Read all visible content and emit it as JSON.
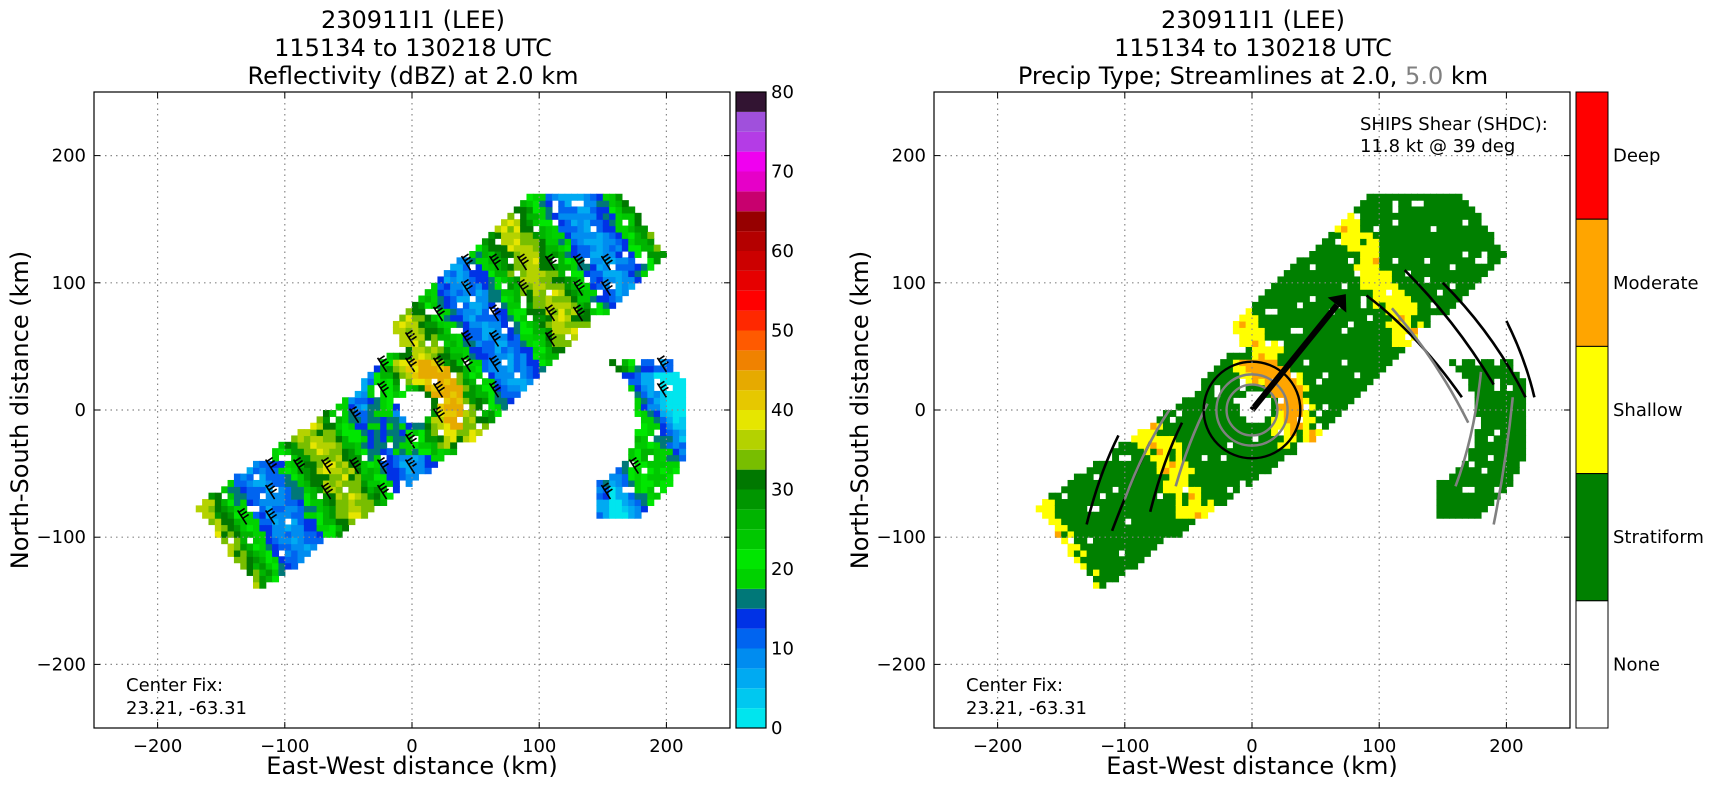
{
  "panels": [
    {
      "title_lines": [
        "230911I1 (LEE)",
        "115134 to 130218 UTC",
        "Reflectivity (dBZ) at 2.0 km"
      ],
      "xlabel": "East-West distance (km)",
      "ylabel": "North-South distance (km)",
      "center_fix": [
        "Center Fix:",
        "23.21, -63.31"
      ]
    },
    {
      "title_lines": [
        "230911I1 (LEE)",
        "115134 to 130218 UTC"
      ],
      "title_line3": {
        "prefix": "Precip Type; Streamlines at 2.0, ",
        "highlight": "5.0",
        "suffix": " km",
        "highlight_color": "#808080"
      },
      "xlabel": "East-West distance (km)",
      "ylabel": "North-South distance (km)",
      "center_fix": [
        "Center Fix:",
        "23.21, -63.31"
      ],
      "shear_note": [
        "SHIPS Shear (SHDC):",
        "11.8 kt @ 39 deg"
      ]
    }
  ],
  "chart_data": [
    {
      "type": "heatmap",
      "title": "230911I1 (LEE) 115134 to 130218 UTC Reflectivity (dBZ) at 2.0 km",
      "xlabel": "East-West distance (km)",
      "ylabel": "North-South distance (km)",
      "xlim": [
        -250,
        250
      ],
      "ylim": [
        -250,
        250
      ],
      "xticks": [
        -200,
        -100,
        0,
        100,
        200
      ],
      "yticks": [
        -200,
        -100,
        0,
        100,
        200
      ],
      "grid": true,
      "colorbar": {
        "label_values": [
          0,
          10,
          20,
          30,
          40,
          50,
          60,
          70,
          80
        ],
        "range": [
          0,
          80
        ],
        "bins": [
          {
            "from": 0,
            "to": 2.5,
            "color": "#00e5ee"
          },
          {
            "from": 2.5,
            "to": 5,
            "color": "#00c8f0"
          },
          {
            "from": 5,
            "to": 7.5,
            "color": "#00aaf2"
          },
          {
            "from": 7.5,
            "to": 10,
            "color": "#008cf0"
          },
          {
            "from": 10,
            "to": 12.5,
            "color": "#0064f0"
          },
          {
            "from": 12.5,
            "to": 15,
            "color": "#0032e6"
          },
          {
            "from": 15,
            "to": 17.5,
            "color": "#007878"
          },
          {
            "from": 17.5,
            "to": 20,
            "color": "#00d200"
          },
          {
            "from": 20,
            "to": 22.5,
            "color": "#00e600"
          },
          {
            "from": 22.5,
            "to": 25,
            "color": "#00c800"
          },
          {
            "from": 25,
            "to": 27.5,
            "color": "#00b400"
          },
          {
            "from": 27.5,
            "to": 30,
            "color": "#009600"
          },
          {
            "from": 30,
            "to": 32.5,
            "color": "#007800"
          },
          {
            "from": 32.5,
            "to": 35,
            "color": "#78be00"
          },
          {
            "from": 35,
            "to": 37.5,
            "color": "#b4d200"
          },
          {
            "from": 37.5,
            "to": 40,
            "color": "#e6e600"
          },
          {
            "from": 40,
            "to": 42.5,
            "color": "#e6c800"
          },
          {
            "from": 42.5,
            "to": 45,
            "color": "#e6aa00"
          },
          {
            "from": 45,
            "to": 47.5,
            "color": "#f08200"
          },
          {
            "from": 47.5,
            "to": 50,
            "color": "#ff5a00"
          },
          {
            "from": 50,
            "to": 52.5,
            "color": "#ff2800"
          },
          {
            "from": 52.5,
            "to": 55,
            "color": "#ff0000"
          },
          {
            "from": 55,
            "to": 57.5,
            "color": "#e60000"
          },
          {
            "from": 57.5,
            "to": 60,
            "color": "#cc0000"
          },
          {
            "from": 60,
            "to": 62.5,
            "color": "#b40000"
          },
          {
            "from": 62.5,
            "to": 65,
            "color": "#960000"
          },
          {
            "from": 65,
            "to": 67.5,
            "color": "#c8006e"
          },
          {
            "from": 67.5,
            "to": 70,
            "color": "#e600c8"
          },
          {
            "from": 70,
            "to": 72.5,
            "color": "#f000f0"
          },
          {
            "from": 72.5,
            "to": 75,
            "color": "#b43ce6"
          },
          {
            "from": 75,
            "to": 77.5,
            "color": "#a050dc"
          },
          {
            "from": 77.5,
            "to": 80,
            "color": "#321432"
          }
        ]
      },
      "annotations": [
        "Center Fix:",
        "23.21, -63.31"
      ]
    },
    {
      "type": "heatmap",
      "title": "230911I1 (LEE) 115134 to 130218 UTC Precip Type; Streamlines at 2.0, 5.0 km",
      "xlabel": "East-West distance (km)",
      "ylabel": "North-South distance (km)",
      "xlim": [
        -250,
        250
      ],
      "ylim": [
        -250,
        250
      ],
      "xticks": [
        -200,
        -100,
        0,
        100,
        200
      ],
      "yticks": [
        -200,
        -100,
        0,
        100,
        200
      ],
      "grid": true,
      "categories": [
        {
          "name": "Deep",
          "color": "#ff0000"
        },
        {
          "name": "Moderate",
          "color": "#ffa500"
        },
        {
          "name": "Shallow",
          "color": "#ffff00"
        },
        {
          "name": "Stratiform",
          "color": "#008000"
        },
        {
          "name": "None",
          "color": "#ffffff"
        }
      ],
      "shear_vector": {
        "magnitude_kt": 11.8,
        "direction_deg": 39
      },
      "streamline_colors": {
        "2.0": "#000000",
        "5.0": "#808080"
      },
      "annotations": [
        "Center Fix:",
        "23.21, -63.31",
        "SHIPS Shear (SHDC):",
        "11.8 kt @ 39 deg"
      ]
    }
  ]
}
